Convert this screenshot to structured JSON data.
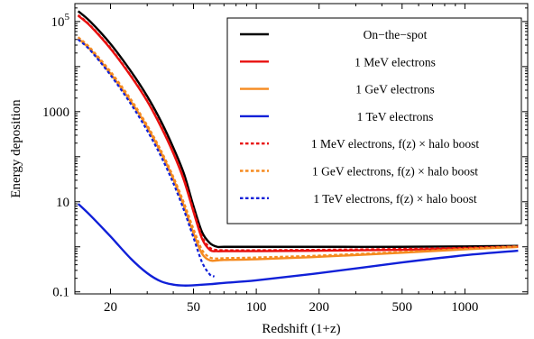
{
  "chart_data": {
    "type": "line",
    "xlabel": "Redshift (1+z)",
    "ylabel": "Energy deposition",
    "xscale": "log",
    "yscale": "log",
    "xlim": [
      13.5,
      2000
    ],
    "ylim": [
      0.09,
      250000
    ],
    "grid": false,
    "legend_position": "top-right",
    "x_ticks": [
      {
        "value": 20,
        "label": "20"
      },
      {
        "value": 50,
        "label": "50"
      },
      {
        "value": 100,
        "label": "100"
      },
      {
        "value": 200,
        "label": "200"
      },
      {
        "value": 500,
        "label": "500"
      },
      {
        "value": 1000,
        "label": "1000"
      }
    ],
    "y_ticks": [
      {
        "value": 0.1,
        "label": "0.1",
        "sup": ""
      },
      {
        "value": 10,
        "label": "10",
        "sup": ""
      },
      {
        "value": 1000,
        "label": "1000",
        "sup": ""
      },
      {
        "value": 100000,
        "label": "10",
        "sup": "5"
      }
    ],
    "series": [
      {
        "name": "On−the−spot",
        "color": "#000000",
        "dash": false,
        "x": [
          14,
          16,
          20,
          25,
          30,
          35,
          40,
          45,
          50,
          55,
          60,
          65,
          70,
          100,
          200,
          500,
          1000,
          1800
        ],
        "y": [
          170000,
          100000,
          32000,
          8000,
          2200,
          600,
          160,
          42,
          8,
          2.1,
          1.2,
          1.0,
          1.0,
          1.0,
          1.0,
          1.0,
          1.02,
          1.05
        ]
      },
      {
        "name": "1 MeV electrons",
        "color": "#e8100f",
        "dash": false,
        "x": [
          14,
          16,
          20,
          25,
          30,
          35,
          40,
          45,
          50,
          55,
          60,
          65,
          70,
          100,
          200,
          500,
          1000,
          1800
        ],
        "y": [
          135000,
          80000,
          25000,
          6200,
          1700,
          450,
          120,
          30,
          6,
          1.5,
          0.85,
          0.8,
          0.8,
          0.8,
          0.82,
          0.86,
          0.92,
          1.0
        ]
      },
      {
        "name": "1 GeV electrons",
        "color": "#f58a1f",
        "dash": false,
        "x": [
          14,
          16,
          20,
          25,
          30,
          35,
          40,
          45,
          50,
          55,
          60,
          65,
          70,
          100,
          200,
          500,
          1000,
          1800
        ],
        "y": [
          42000,
          24000,
          7000,
          1700,
          450,
          120,
          32,
          8,
          2,
          0.7,
          0.5,
          0.5,
          0.51,
          0.53,
          0.6,
          0.74,
          0.88,
          1.0
        ]
      },
      {
        "name": "1 TeV electrons",
        "color": "#1020d8",
        "dash": false,
        "x": [
          14,
          16,
          20,
          25,
          30,
          35,
          40,
          45,
          50,
          60,
          70,
          100,
          200,
          500,
          1000,
          1800
        ],
        "y": [
          9,
          5,
          1.7,
          0.55,
          0.26,
          0.17,
          0.145,
          0.138,
          0.14,
          0.148,
          0.158,
          0.18,
          0.26,
          0.45,
          0.65,
          0.82
        ]
      },
      {
        "name": "1 MeV electrons, f(z) × halo boost",
        "color": "#e8100f",
        "dash": true,
        "x": [
          14,
          16,
          20,
          25,
          30,
          35,
          40,
          45,
          50,
          55,
          60,
          65,
          70,
          100,
          200,
          500,
          1000,
          1800
        ],
        "y": [
          140000,
          82000,
          26000,
          6400,
          1750,
          470,
          125,
          32,
          6.5,
          1.7,
          0.95,
          0.85,
          0.84,
          0.84,
          0.86,
          0.9,
          0.95,
          1.02
        ]
      },
      {
        "name": "1 GeV electrons, f(z) × halo boost",
        "color": "#f58a1f",
        "dash": true,
        "x": [
          14,
          16,
          20,
          25,
          30,
          35,
          40,
          45,
          50,
          55,
          60,
          65,
          70,
          100,
          200,
          500,
          1000,
          1800
        ],
        "y": [
          45000,
          26000,
          7800,
          1900,
          500,
          135,
          36,
          9.5,
          2.5,
          0.85,
          0.58,
          0.55,
          0.56,
          0.58,
          0.64,
          0.77,
          0.9,
          1.02
        ]
      },
      {
        "name": "1 TeV electrons, f(z) × halo boost",
        "color": "#1020d8",
        "dash": true,
        "x": [
          14,
          16,
          20,
          25,
          30,
          35,
          40,
          45,
          50,
          55,
          60,
          63
        ],
        "y": [
          40000,
          23000,
          6500,
          1500,
          380,
          100,
          26,
          6.5,
          1.6,
          0.45,
          0.24,
          0.22
        ]
      }
    ]
  }
}
